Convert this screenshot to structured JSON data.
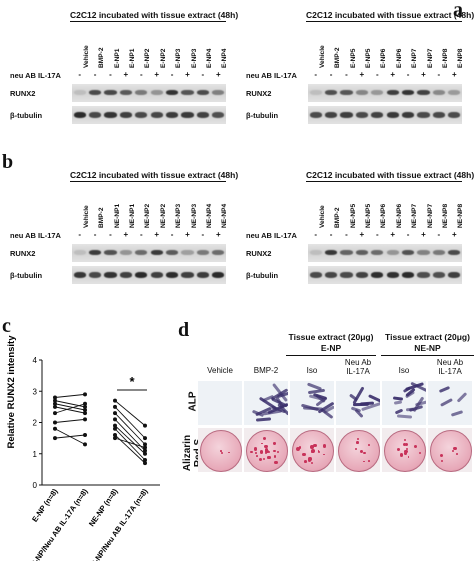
{
  "panel_a": {
    "letter": "a",
    "left_blot": {
      "header": "C2C12 incubated with tissue extract (48h)",
      "lanes": [
        "Vehicle",
        "BMP-2",
        "E-NP1",
        "E-NP1",
        "E-NP2",
        "E-NP2",
        "E-NP3",
        "E-NP3",
        "E-NP4",
        "E-NP4"
      ],
      "treatment_label": "neu AB IL-17A",
      "treatment": [
        "-",
        "-",
        "-",
        "+",
        "-",
        "+",
        "-",
        "+",
        "-",
        "+"
      ],
      "row1": "RUNX2",
      "row2": "β-tubulin"
    },
    "right_blot": {
      "header": "C2C12 incubated with tissue extract (48h)",
      "lanes": [
        "Vehicle",
        "BMP-2",
        "E-NP5",
        "E-NP5",
        "E-NP6",
        "E-NP6",
        "E-NP7",
        "E-NP7",
        "E-NP8",
        "E-NP8"
      ],
      "treatment_label": "neu AB IL-17A",
      "treatment": [
        "-",
        "-",
        "-",
        "+",
        "-",
        "+",
        "-",
        "+",
        "-",
        "+"
      ],
      "row1": "RUNX2",
      "row2": "β-tubulin"
    }
  },
  "panel_b": {
    "letter": "b",
    "left_blot": {
      "header": "C2C12 incubated with tissue extract (48h)",
      "lanes": [
        "Vehicle",
        "BMP-2",
        "NE-NP1",
        "NE-NP1",
        "NE-NP2",
        "NE-NP2",
        "NE-NP3",
        "NE-NP3",
        "NE-NP4",
        "NE-NP4"
      ],
      "treatment_label": "neu AB IL-17A",
      "treatment": [
        "-",
        "-",
        "-",
        "+",
        "-",
        "+",
        "-",
        "+",
        "-",
        "+"
      ],
      "row1": "RUNX2",
      "row2": "β-tubulin"
    },
    "right_blot": {
      "header": "C2C12 incubated with tissue extract (48h)",
      "lanes": [
        "Vehicle",
        "BMP-2",
        "NE-NP5",
        "NE-NP5",
        "NE-NP6",
        "NE-NP6",
        "NE-NP7",
        "NE-NP7",
        "NE-NP8",
        "NE-NP8"
      ],
      "treatment_label": "neu AB IL-17A",
      "treatment": [
        "-",
        "-",
        "-",
        "+",
        "-",
        "+",
        "-",
        "+",
        "-",
        "+"
      ],
      "row1": "RUNX2",
      "row2": "β-tubulin"
    }
  },
  "panel_c": {
    "letter": "c",
    "significance": "*"
  },
  "chart_data": {
    "type": "scatter",
    "ylabel": "Relative RUNX2 intensity",
    "xlabel": "",
    "ylim": [
      0,
      4
    ],
    "yticks": [
      0,
      1,
      2,
      3,
      4
    ],
    "categories": [
      "E-NP (n=8)",
      "E-NP/Neu AB IL-17A (n=8)",
      "NE-NP (n=8)",
      "NE-NP/Neu AB IL-17A (n=8)"
    ],
    "paired_series": [
      {
        "name": "",
        "pair": [
          0,
          1
        ],
        "before": [
          2.6,
          2.8,
          2.5,
          2.3,
          2.0,
          1.8,
          1.5,
          2.7
        ],
        "after": [
          2.4,
          2.9,
          2.3,
          2.6,
          2.1,
          1.3,
          1.6,
          2.5
        ]
      },
      {
        "name": "",
        "pair": [
          2,
          3
        ],
        "before": [
          2.7,
          2.5,
          2.3,
          2.1,
          1.9,
          1.8,
          1.6,
          1.5
        ],
        "after": [
          1.9,
          1.5,
          1.3,
          1.1,
          1.0,
          0.8,
          0.7,
          1.2
        ]
      }
    ],
    "significance": "*"
  },
  "panel_d": {
    "letter": "d",
    "group1": {
      "title": "Tissue extract (20μg)",
      "subtitle": "E-NP"
    },
    "group2": {
      "title": "Tissue extract (20μg)",
      "subtitle": "NE-NP"
    },
    "columns": [
      "Vehicle",
      "BMP-2",
      "Iso",
      "Neu Ab\nIL-17A",
      "Iso",
      "Neu Ab\nIL-17A"
    ],
    "rows": [
      "ALP",
      "Alizarin\nRed S"
    ],
    "colors": {
      "alp_stain": "#3a2f6b",
      "alizarin": "#c8325a",
      "dish": "#e7a8b8"
    }
  }
}
